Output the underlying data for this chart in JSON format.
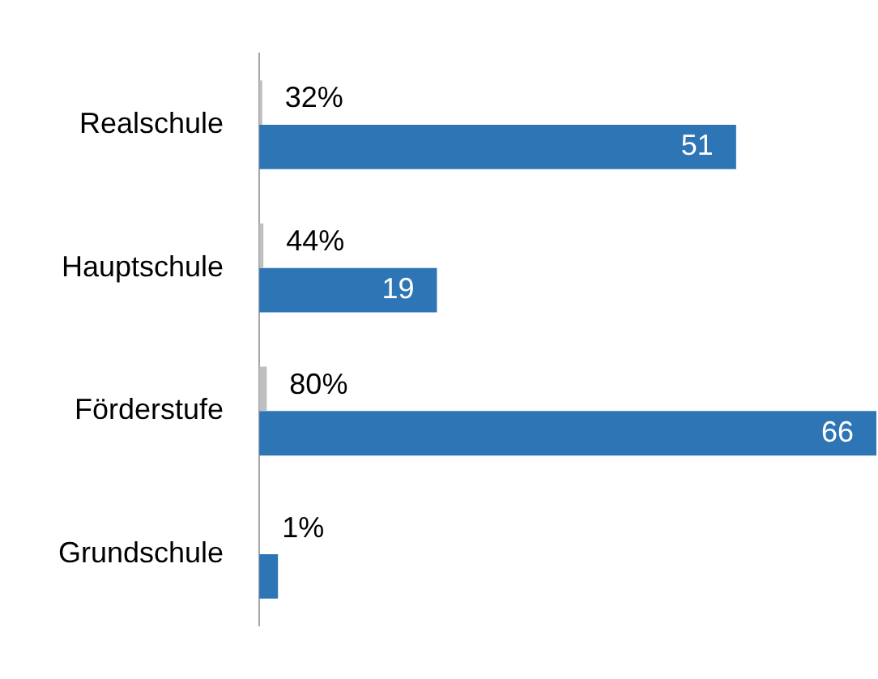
{
  "chart_data": {
    "type": "bar",
    "orientation": "horizontal",
    "categories": [
      "Realschule",
      "Hauptschule",
      "Förderstufe",
      "Grundschule"
    ],
    "series": [
      {
        "color": "#bfbfbf",
        "values": [
          0.32,
          0.44,
          0.8,
          0.01
        ],
        "value_labels": [
          "32%",
          "44%",
          "80%",
          "1%"
        ]
      },
      {
        "color": "#2e75b6",
        "values": [
          51,
          19,
          66,
          2
        ],
        "value_labels": [
          "51",
          "19",
          "66",
          null
        ]
      }
    ],
    "xlim": [
      0,
      66
    ],
    "tick_labels": "y",
    "grid": false,
    "legend": false
  }
}
